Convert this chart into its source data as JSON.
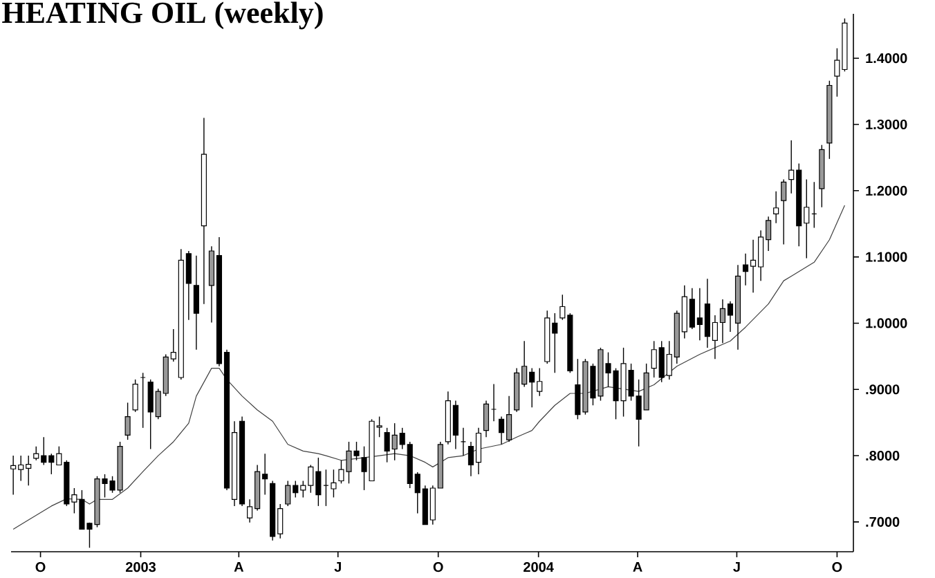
{
  "chart_data": {
    "type": "candlestick",
    "title": "HEATING OIL (weekly)",
    "x": [
      "2002-09-06",
      "2002-09-13",
      "2002-09-20",
      "2002-09-27",
      "2002-10-04",
      "2002-10-11",
      "2002-10-18",
      "2002-10-25",
      "2002-11-01",
      "2002-11-08",
      "2002-11-15",
      "2002-11-22",
      "2002-11-29",
      "2002-12-06",
      "2002-12-13",
      "2002-12-20",
      "2002-12-27",
      "2003-01-03",
      "2003-01-10",
      "2003-01-17",
      "2003-01-24",
      "2003-01-31",
      "2003-02-07",
      "2003-02-14",
      "2003-02-21",
      "2003-02-28",
      "2003-03-07",
      "2003-03-14",
      "2003-03-21",
      "2003-03-28",
      "2003-04-04",
      "2003-04-11",
      "2003-04-18",
      "2003-04-25",
      "2003-05-02",
      "2003-05-09",
      "2003-05-16",
      "2003-05-23",
      "2003-05-30",
      "2003-06-06",
      "2003-06-13",
      "2003-06-20",
      "2003-06-27",
      "2003-07-04",
      "2003-07-11",
      "2003-07-18",
      "2003-07-25",
      "2003-08-01",
      "2003-08-08",
      "2003-08-15",
      "2003-08-22",
      "2003-08-29",
      "2003-09-05",
      "2003-09-12",
      "2003-09-19",
      "2003-09-26",
      "2003-10-03",
      "2003-10-10",
      "2003-10-17",
      "2003-10-24",
      "2003-10-31",
      "2003-11-07",
      "2003-11-14",
      "2003-11-21",
      "2003-11-28",
      "2003-12-05",
      "2003-12-12",
      "2003-12-19",
      "2003-12-26",
      "2004-01-02",
      "2004-01-09",
      "2004-01-16",
      "2004-01-23",
      "2004-01-30",
      "2004-02-06",
      "2004-02-13",
      "2004-02-20",
      "2004-02-27",
      "2004-03-05",
      "2004-03-12",
      "2004-03-19",
      "2004-03-26",
      "2004-04-02",
      "2004-04-09",
      "2004-04-16",
      "2004-04-23",
      "2004-04-30",
      "2004-05-07",
      "2004-05-14",
      "2004-05-21",
      "2004-05-28",
      "2004-06-04",
      "2004-06-11",
      "2004-06-18",
      "2004-06-25",
      "2004-07-02",
      "2004-07-09",
      "2004-07-16",
      "2004-07-23",
      "2004-07-30",
      "2004-08-06",
      "2004-08-13",
      "2004-08-20",
      "2004-08-27",
      "2004-09-03",
      "2004-09-10",
      "2004-09-17",
      "2004-09-24",
      "2004-10-01",
      "2004-10-08"
    ],
    "ohlc": [
      [
        0.78,
        0.8,
        0.741,
        0.785
      ],
      [
        0.779,
        0.8,
        0.762,
        0.786
      ],
      [
        0.781,
        0.8,
        0.755,
        0.787
      ],
      [
        0.796,
        0.814,
        0.793,
        0.803
      ],
      [
        0.8,
        0.828,
        0.786,
        0.79
      ],
      [
        0.8,
        0.803,
        0.772,
        0.79
      ],
      [
        0.786,
        0.814,
        0.786,
        0.803
      ],
      [
        0.79,
        0.793,
        0.724,
        0.727
      ],
      [
        0.73,
        0.751,
        0.713,
        0.741
      ],
      [
        0.734,
        0.748,
        0.689,
        0.689
      ],
      [
        0.698,
        0.699,
        0.661,
        0.689
      ],
      [
        0.696,
        0.769,
        0.692,
        0.765
      ],
      [
        0.765,
        0.772,
        0.737,
        0.758
      ],
      [
        0.762,
        0.769,
        0.744,
        0.748
      ],
      [
        0.748,
        0.821,
        0.744,
        0.814
      ],
      [
        0.831,
        0.88,
        0.824,
        0.859
      ],
      [
        0.869,
        0.915,
        0.866,
        0.908
      ],
      [
        0.918,
        0.925,
        0.842,
        0.918
      ],
      [
        0.911,
        0.915,
        0.81,
        0.866
      ],
      [
        0.859,
        0.901,
        0.855,
        0.897
      ],
      [
        0.894,
        0.953,
        0.89,
        0.949
      ],
      [
        0.946,
        0.991,
        0.942,
        0.956
      ],
      [
        0.918,
        1.112,
        0.915,
        1.095
      ],
      [
        1.105,
        1.109,
        1.005,
        1.06
      ],
      [
        1.057,
        1.102,
        0.96,
        1.015
      ],
      [
        1.147,
        1.31,
        1.029,
        1.255
      ],
      [
        1.057,
        1.116,
        1.001,
        1.109
      ],
      [
        1.102,
        1.13,
        0.935,
        0.939
      ],
      [
        0.956,
        0.96,
        0.748,
        0.751
      ],
      [
        0.734,
        0.852,
        0.724,
        0.835
      ],
      [
        0.852,
        0.859,
        0.724,
        0.727
      ],
      [
        0.706,
        0.734,
        0.699,
        0.723
      ],
      [
        0.72,
        0.786,
        0.717,
        0.776
      ],
      [
        0.772,
        0.803,
        0.741,
        0.765
      ],
      [
        0.758,
        0.762,
        0.672,
        0.678
      ],
      [
        0.682,
        0.727,
        0.675,
        0.72
      ],
      [
        0.727,
        0.762,
        0.724,
        0.755
      ],
      [
        0.755,
        0.762,
        0.737,
        0.744
      ],
      [
        0.748,
        0.762,
        0.737,
        0.755
      ],
      [
        0.755,
        0.786,
        0.744,
        0.783
      ],
      [
        0.776,
        0.797,
        0.724,
        0.741
      ],
      [
        0.755,
        0.779,
        0.724,
        0.755
      ],
      [
        0.75,
        0.779,
        0.737,
        0.759
      ],
      [
        0.762,
        0.793,
        0.758,
        0.779
      ],
      [
        0.776,
        0.821,
        0.758,
        0.807
      ],
      [
        0.807,
        0.821,
        0.793,
        0.8
      ],
      [
        0.797,
        0.814,
        0.748,
        0.776
      ],
      [
        0.762,
        0.855,
        0.762,
        0.852
      ],
      [
        0.843,
        0.859,
        0.828,
        0.845
      ],
      [
        0.835,
        0.842,
        0.79,
        0.807
      ],
      [
        0.81,
        0.849,
        0.793,
        0.831
      ],
      [
        0.834,
        0.842,
        0.81,
        0.817
      ],
      [
        0.817,
        0.821,
        0.751,
        0.758
      ],
      [
        0.772,
        0.775,
        0.713,
        0.744
      ],
      [
        0.75,
        0.755,
        0.696,
        0.696
      ],
      [
        0.703,
        0.755,
        0.696,
        0.751
      ],
      [
        0.751,
        0.821,
        0.751,
        0.817
      ],
      [
        0.821,
        0.897,
        0.817,
        0.883
      ],
      [
        0.876,
        0.883,
        0.81,
        0.831
      ],
      [
        0.821,
        0.842,
        0.8,
        0.821
      ],
      [
        0.814,
        0.821,
        0.769,
        0.786
      ],
      [
        0.79,
        0.842,
        0.772,
        0.834
      ],
      [
        0.838,
        0.883,
        0.828,
        0.878
      ],
      [
        0.87,
        0.908,
        0.852,
        0.87
      ],
      [
        0.855,
        0.859,
        0.817,
        0.835
      ],
      [
        0.824,
        0.89,
        0.821,
        0.862
      ],
      [
        0.869,
        0.932,
        0.866,
        0.925
      ],
      [
        0.908,
        0.973,
        0.904,
        0.935
      ],
      [
        0.926,
        0.932,
        0.873,
        0.911
      ],
      [
        0.897,
        0.932,
        0.89,
        0.912
      ],
      [
        0.942,
        1.019,
        0.939,
        1.008
      ],
      [
        1.0,
        1.015,
        0.925,
        0.985
      ],
      [
        1.008,
        1.043,
        1.005,
        1.025
      ],
      [
        1.012,
        1.015,
        0.925,
        0.928
      ],
      [
        0.907,
        0.946,
        0.855,
        0.862
      ],
      [
        0.866,
        0.946,
        0.862,
        0.942
      ],
      [
        0.935,
        0.939,
        0.876,
        0.887
      ],
      [
        0.89,
        0.963,
        0.883,
        0.96
      ],
      [
        0.939,
        0.956,
        0.904,
        0.925
      ],
      [
        0.928,
        0.932,
        0.855,
        0.883
      ],
      [
        0.883,
        0.963,
        0.859,
        0.939
      ],
      [
        0.929,
        0.939,
        0.883,
        0.89
      ],
      [
        0.89,
        0.915,
        0.814,
        0.855
      ],
      [
        0.869,
        0.939,
        0.869,
        0.925
      ],
      [
        0.932,
        0.973,
        0.918,
        0.96
      ],
      [
        0.963,
        0.973,
        0.911,
        0.918
      ],
      [
        0.921,
        0.973,
        0.915,
        0.953
      ],
      [
        0.949,
        1.019,
        0.939,
        1.015
      ],
      [
        0.987,
        1.057,
        0.977,
        1.04
      ],
      [
        1.036,
        1.053,
        0.991,
        0.994
      ],
      [
        1.008,
        1.053,
        0.974,
        0.998
      ],
      [
        1.029,
        1.067,
        0.963,
        0.98
      ],
      [
        0.974,
        1.012,
        0.946,
        1.001
      ],
      [
        1.001,
        1.036,
        0.97,
        1.022
      ],
      [
        1.029,
        1.033,
        0.987,
        1.012
      ],
      [
        1.0,
        1.088,
        0.96,
        1.071
      ],
      [
        1.088,
        1.105,
        1.057,
        1.078
      ],
      [
        1.086,
        1.126,
        1.046,
        1.095
      ],
      [
        1.085,
        1.14,
        1.064,
        1.13
      ],
      [
        1.126,
        1.161,
        1.109,
        1.155
      ],
      [
        1.165,
        1.199,
        1.151,
        1.174
      ],
      [
        1.185,
        1.217,
        1.119,
        1.213
      ],
      [
        1.217,
        1.276,
        1.196,
        1.231
      ],
      [
        1.231,
        1.241,
        1.116,
        1.147
      ],
      [
        1.151,
        1.217,
        1.098,
        1.175
      ],
      [
        1.165,
        1.213,
        1.144,
        1.165
      ],
      [
        1.203,
        1.269,
        1.175,
        1.262
      ],
      [
        1.272,
        1.366,
        1.248,
        1.359
      ],
      [
        1.373,
        1.415,
        1.342,
        1.397
      ],
      [
        1.383,
        1.46,
        1.38,
        1.453
      ]
    ],
    "colors": [
      "#ffffff",
      "#ffffff",
      "#ffffff",
      "#ffffff",
      "#000000",
      "#000000",
      "#ffffff",
      "#000000",
      "#ffffff",
      "#000000",
      "#000000",
      "#999999",
      "#000000",
      "#000000",
      "#999999",
      "#999999",
      "#ffffff",
      "#000000",
      "#000000",
      "#999999",
      "#999999",
      "#ffffff",
      "#ffffff",
      "#000000",
      "#000000",
      "#ffffff",
      "#999999",
      "#000000",
      "#000000",
      "#ffffff",
      "#000000",
      "#ffffff",
      "#999999",
      "#000000",
      "#000000",
      "#ffffff",
      "#999999",
      "#000000",
      "#ffffff",
      "#ffffff",
      "#000000",
      "#000000",
      "#ffffff",
      "#ffffff",
      "#999999",
      "#000000",
      "#000000",
      "#ffffff",
      "#ffffff",
      "#000000",
      "#999999",
      "#000000",
      "#000000",
      "#000000",
      "#000000",
      "#ffffff",
      "#999999",
      "#ffffff",
      "#000000",
      "#000000",
      "#000000",
      "#ffffff",
      "#999999",
      "#000000",
      "#000000",
      "#999999",
      "#999999",
      "#999999",
      "#000000",
      "#ffffff",
      "#ffffff",
      "#000000",
      "#ffffff",
      "#000000",
      "#000000",
      "#999999",
      "#000000",
      "#999999",
      "#000000",
      "#000000",
      "#ffffff",
      "#000000",
      "#000000",
      "#999999",
      "#ffffff",
      "#000000",
      "#ffffff",
      "#999999",
      "#ffffff",
      "#000000",
      "#000000",
      "#000000",
      "#ffffff",
      "#999999",
      "#000000",
      "#999999",
      "#000000",
      "#ffffff",
      "#ffffff",
      "#999999",
      "#ffffff",
      "#999999",
      "#ffffff",
      "#000000",
      "#ffffff",
      "#000000",
      "#999999",
      "#999999",
      "#ffffff",
      "#ffffff"
    ],
    "series": [
      {
        "type": "line",
        "color": "#404040",
        "x": [
          "2002-09-06",
          "2002-09-20",
          "2002-10-11",
          "2002-10-25",
          "2002-11-08",
          "2002-11-15",
          "2002-11-22",
          "2002-12-06",
          "2002-12-20",
          "2003-01-03",
          "2003-01-17",
          "2003-01-31",
          "2003-02-14",
          "2003-02-21",
          "2003-03-07",
          "2003-03-14",
          "2003-03-21",
          "2003-04-04",
          "2003-04-18",
          "2003-05-02",
          "2003-05-16",
          "2003-05-30",
          "2003-06-13",
          "2003-06-20",
          "2003-07-04",
          "2003-07-25",
          "2003-08-08",
          "2003-08-22",
          "2003-09-05",
          "2003-09-19",
          "2003-09-26",
          "2003-10-10",
          "2003-10-24",
          "2003-11-07",
          "2003-11-28",
          "2003-12-12",
          "2003-12-26",
          "2004-01-02",
          "2004-01-16",
          "2004-01-30",
          "2004-02-13",
          "2004-03-05",
          "2004-04-02",
          "2004-04-16",
          "2004-05-07",
          "2004-05-28",
          "2004-06-25",
          "2004-07-09",
          "2004-07-30",
          "2004-08-13",
          "2004-08-20",
          "2004-09-10",
          "2004-09-24",
          "2004-10-08"
        ],
        "values": [
          0.689,
          0.703,
          0.724,
          0.735,
          0.734,
          0.727,
          0.734,
          0.734,
          0.751,
          0.776,
          0.8,
          0.821,
          0.849,
          0.89,
          0.932,
          0.932,
          0.915,
          0.89,
          0.869,
          0.852,
          0.817,
          0.807,
          0.803,
          0.8,
          0.793,
          0.797,
          0.8,
          0.803,
          0.8,
          0.79,
          0.783,
          0.797,
          0.8,
          0.81,
          0.817,
          0.828,
          0.838,
          0.852,
          0.876,
          0.894,
          0.894,
          0.904,
          0.897,
          0.907,
          0.935,
          0.953,
          0.973,
          0.994,
          1.029,
          1.064,
          1.071,
          1.092,
          1.126,
          1.178
        ]
      }
    ],
    "xlim": [
      "2002-09-04",
      "2004-10-16"
    ],
    "ylim": [
      0.655,
      1.467
    ],
    "xticks": [
      {
        "value": "2002-10-01",
        "label": "O"
      },
      {
        "value": "2003-01-01",
        "label": "2003"
      },
      {
        "value": "2003-04-01",
        "label": "A"
      },
      {
        "value": "2003-07-01",
        "label": "J"
      },
      {
        "value": "2003-10-01",
        "label": "O"
      },
      {
        "value": "2004-01-01",
        "label": "2004"
      },
      {
        "value": "2004-04-01",
        "label": "A"
      },
      {
        "value": "2004-07-01",
        "label": "J"
      },
      {
        "value": "2004-10-01",
        "label": "O"
      }
    ],
    "yticks": [
      {
        "value": 0.7,
        "label": ".7000"
      },
      {
        "value": 0.8,
        "label": ".8000"
      },
      {
        "value": 0.9,
        "label": ".9000"
      },
      {
        "value": 1.0,
        "label": "1.0000"
      },
      {
        "value": 1.1,
        "label": "1.1000"
      },
      {
        "value": 1.2,
        "label": "1.2000"
      },
      {
        "value": 1.3,
        "label": "1.3000"
      },
      {
        "value": 1.4,
        "label": "1.4000"
      }
    ],
    "grid": false
  }
}
